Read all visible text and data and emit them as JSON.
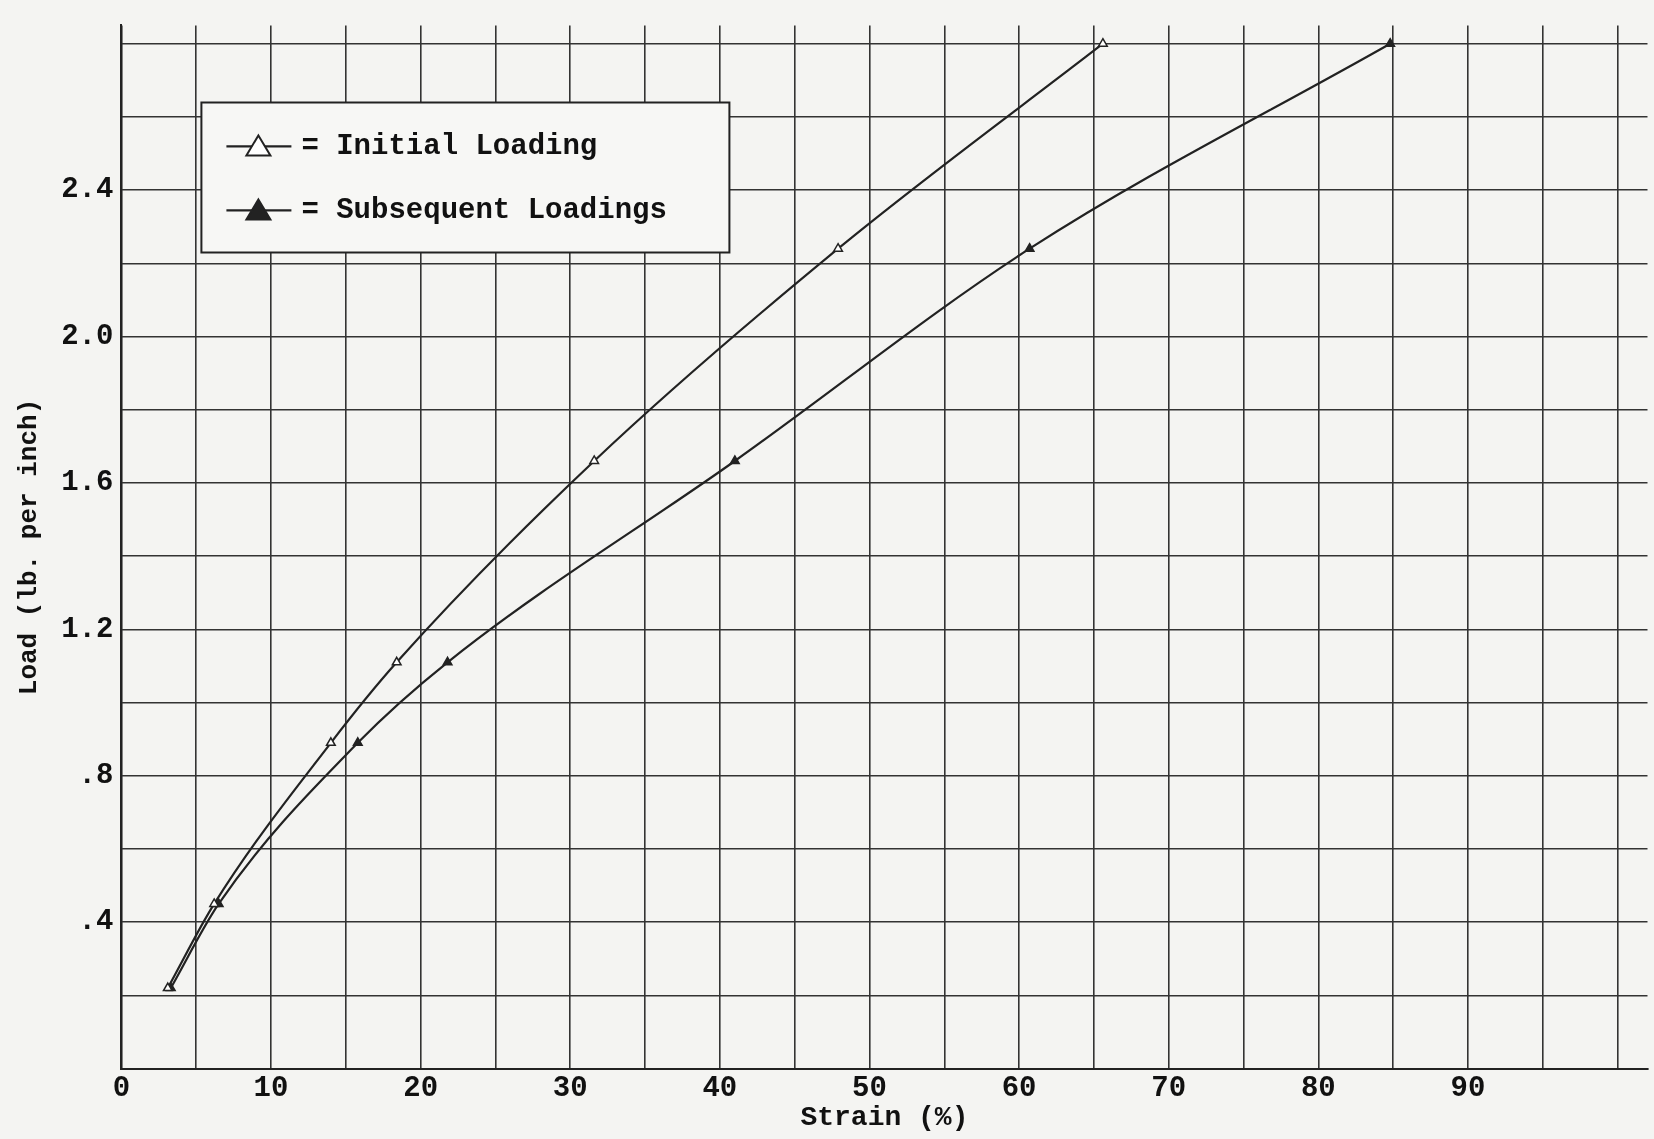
{
  "chart_data": {
    "type": "line",
    "xlabel": "Strain (%)",
    "ylabel": "Load (lb. per inch)",
    "xlim": [
      0,
      102
    ],
    "ylim": [
      0,
      2.85
    ],
    "xticks": [
      0,
      {
        "value": 5,
        "label": null
      },
      10,
      {
        "value": 15,
        "label": null
      },
      20,
      {
        "value": 25,
        "label": null
      },
      30,
      {
        "value": 35,
        "label": null
      },
      40,
      {
        "value": 45,
        "label": null
      },
      50,
      {
        "value": 55,
        "label": null
      },
      60,
      {
        "value": 65,
        "label": null
      },
      70,
      {
        "value": 75,
        "label": null
      },
      80,
      {
        "value": 85,
        "label": null
      },
      90,
      {
        "value": 95,
        "label": null
      },
      {
        "value": 100,
        "label": null
      }
    ],
    "yticks": [
      {
        "value": 0,
        "label": null
      },
      {
        "value": 0.2,
        "label": null
      },
      {
        "value": 0.4,
        "label": ".4"
      },
      {
        "value": 0.6,
        "label": null
      },
      {
        "value": 0.8,
        "label": ".8"
      },
      {
        "value": 1.0,
        "label": null
      },
      {
        "value": 1.2,
        "label": "1.2"
      },
      {
        "value": 1.4,
        "label": null
      },
      {
        "value": 1.6,
        "label": "1.6"
      },
      {
        "value": 1.8,
        "label": null
      },
      {
        "value": 2.0,
        "label": "2.0"
      },
      {
        "value": 2.2,
        "label": null
      },
      {
        "value": 2.4,
        "label": "2.4"
      },
      {
        "value": 2.6,
        "label": null
      },
      {
        "value": 2.8,
        "label": null
      }
    ],
    "grid": true,
    "legend": "top left",
    "marker": "triangle",
    "line_style": "solid",
    "series": [
      {
        "name": "= Initial Loading",
        "color": "#222222",
        "x": [
          3.1,
          6.2,
          14.0,
          18.4,
          31.6,
          47.9,
          65.6
        ],
        "values": [
          0.22,
          0.45,
          0.89,
          1.11,
          1.66,
          2.24,
          2.8
        ]
      },
      {
        "name": "= Subsequent Loadings",
        "color": "#222222",
        "x": [
          3.3,
          6.5,
          15.8,
          21.8,
          41.0,
          60.7,
          84.8
        ],
        "values": [
          0.22,
          0.45,
          0.89,
          1.11,
          1.66,
          2.24,
          2.8
        ]
      }
    ]
  }
}
